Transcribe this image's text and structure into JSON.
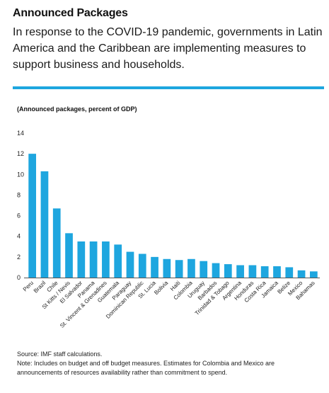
{
  "header": {
    "title": "Announced Packages",
    "subtitle": "In response to the COVID-19 pandemic, governments in Latin America and the Caribbean are implementing measures to support business and households."
  },
  "accent_color": "#1ea6df",
  "chart_data": {
    "type": "bar",
    "title": "(Announced packages, percent of GDP)",
    "xlabel": "",
    "ylabel": "",
    "ylim": [
      0,
      14
    ],
    "yticks": [
      0,
      2,
      4,
      6,
      8,
      10,
      12,
      14
    ],
    "grid": false,
    "bar_color": "#1ea6df",
    "categories": [
      "Peru",
      "Brazil",
      "Chile",
      "St Kitts / Nevis",
      "El Salvador",
      "Panama",
      "St. Vincent & Grenadines",
      "Guatemala",
      "Paraguay",
      "Dominican Republic",
      "St. Lucia",
      "Bolivia",
      "Haiti",
      "Colombia",
      "Uruguay",
      "Barbados",
      "Trinidad & Tobago",
      "Argentina",
      "Honduras",
      "Costa Rica",
      "Jamaica",
      "Belize",
      "Mexico",
      "Bahamas"
    ],
    "values": [
      12.0,
      10.3,
      6.7,
      4.3,
      3.5,
      3.5,
      3.5,
      3.2,
      2.5,
      2.3,
      2.0,
      1.8,
      1.7,
      1.8,
      1.6,
      1.4,
      1.3,
      1.2,
      1.2,
      1.1,
      1.1,
      1.0,
      0.7,
      0.6
    ]
  },
  "footer": {
    "source": "Source: IMF staff calculations.",
    "note": "Note: Includes on budget and off budget measures. Estimates for Colombia and Mexico are announcements of resources availability rather than commitment to spend."
  }
}
